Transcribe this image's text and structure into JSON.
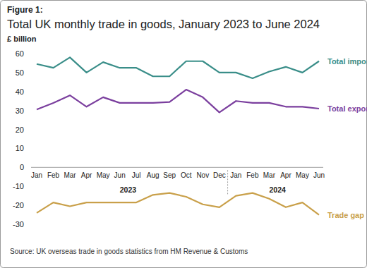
{
  "chart_data": {
    "type": "line",
    "figure_label": "Figure 1:",
    "title": "Total UK monthly trade in goods, January 2023 to June 2024",
    "y_label": "£ billion",
    "source": "Source: UK overseas trade in goods statistics from HM Revenue & Customs",
    "categories": [
      "Jan",
      "Feb",
      "Mar",
      "Apr",
      "May",
      "Jun",
      "Jul",
      "Aug",
      "Sep",
      "Oct",
      "Nov",
      "Dec",
      "Jan",
      "Feb",
      "Mar",
      "Apr",
      "May",
      "Jun"
    ],
    "x_groups": [
      {
        "label": "2023",
        "count": 12
      },
      {
        "label": "2024",
        "count": 6
      }
    ],
    "series": [
      {
        "name": "Total imports",
        "color": "#3a8e89",
        "values": [
          54.5,
          52.5,
          58,
          50,
          55.5,
          52.5,
          52.5,
          48,
          48,
          56,
          56,
          50,
          50,
          47,
          50.5,
          53,
          50,
          56
        ]
      },
      {
        "name": "Total exports",
        "color": "#7b3f9e",
        "values": [
          30.5,
          34,
          38,
          32,
          37,
          34,
          34,
          34,
          34.5,
          41,
          37,
          29,
          35,
          34,
          34,
          32,
          32,
          31
        ]
      },
      {
        "name": "Trade gap",
        "color": "#c9a04a",
        "values": [
          -24,
          -18.5,
          -20.5,
          -18.5,
          -18.5,
          -18.5,
          -18.5,
          -14.5,
          -13.5,
          -15.5,
          -19.5,
          -21,
          -15,
          -13.5,
          -16.5,
          -21,
          -18.5,
          -25
        ]
      }
    ],
    "ylim": [
      -30,
      60
    ],
    "yticks": [
      -30,
      -20,
      -10,
      0,
      10,
      20,
      30,
      40,
      50,
      60
    ],
    "grid": false
  }
}
